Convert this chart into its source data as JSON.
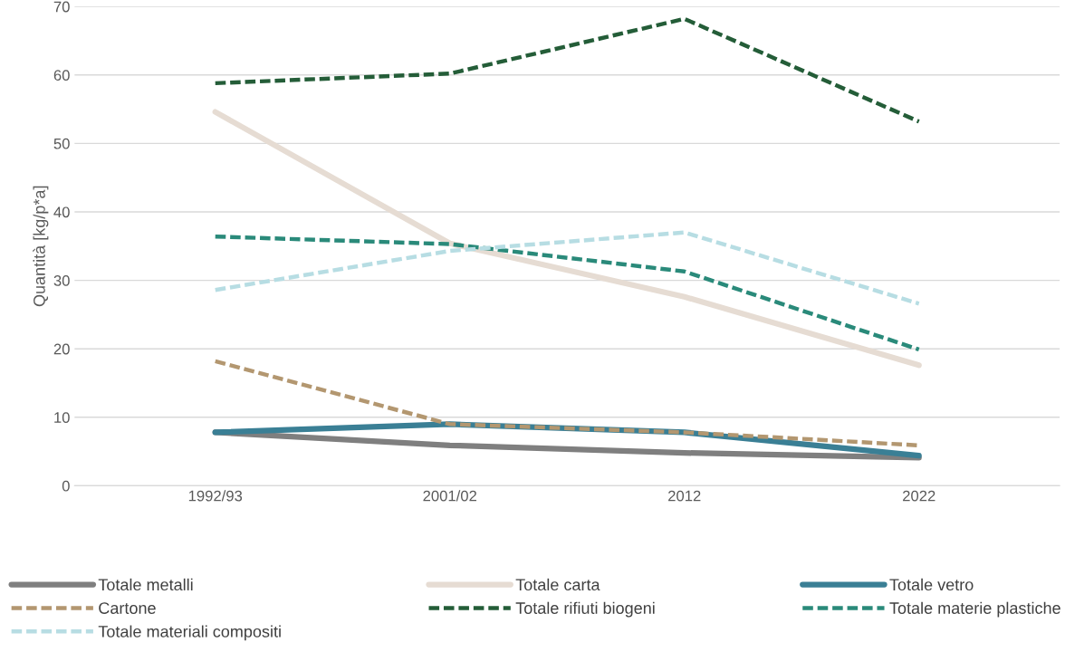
{
  "chart_data": {
    "type": "line",
    "ylabel": "Quantità [kg/p*a]",
    "categories": [
      "1992/93",
      "2001/02",
      "2012",
      "2022"
    ],
    "ylim": [
      0,
      70
    ],
    "yticks": [
      0,
      10,
      20,
      30,
      40,
      50,
      60,
      70
    ],
    "grid": "y",
    "legend": "bottom",
    "marker": "none",
    "series": [
      {
        "name": "Totale metalli",
        "color": "#7f7f7f",
        "line_style": "solid",
        "values": [
          7.8,
          5.9,
          4.8,
          4.1
        ]
      },
      {
        "name": "Totale carta",
        "color": "#e6dcd3",
        "line_style": "solid",
        "values": [
          54.6,
          35.4,
          27.6,
          17.6
        ]
      },
      {
        "name": "Totale vetro",
        "color": "#3a7f95",
        "line_style": "solid",
        "values": [
          7.8,
          9.0,
          7.8,
          4.4
        ]
      },
      {
        "name": "Cartone",
        "color": "#b39770",
        "line_style": "dashed",
        "values": [
          18.2,
          9.0,
          7.8,
          5.9
        ]
      },
      {
        "name": "Totale rifiuti biogeni",
        "color": "#245d38",
        "line_style": "dashed",
        "values": [
          58.8,
          60.2,
          68.2,
          53.2
        ]
      },
      {
        "name": "Totale materie plastiche",
        "color": "#2a8a7a",
        "line_style": "dashed",
        "values": [
          36.4,
          35.3,
          31.3,
          19.9
        ]
      },
      {
        "name": "Totale materiali compositi",
        "color": "#b7dde3",
        "line_style": "dashed",
        "values": [
          28.6,
          34.3,
          37.0,
          26.6
        ]
      }
    ]
  }
}
